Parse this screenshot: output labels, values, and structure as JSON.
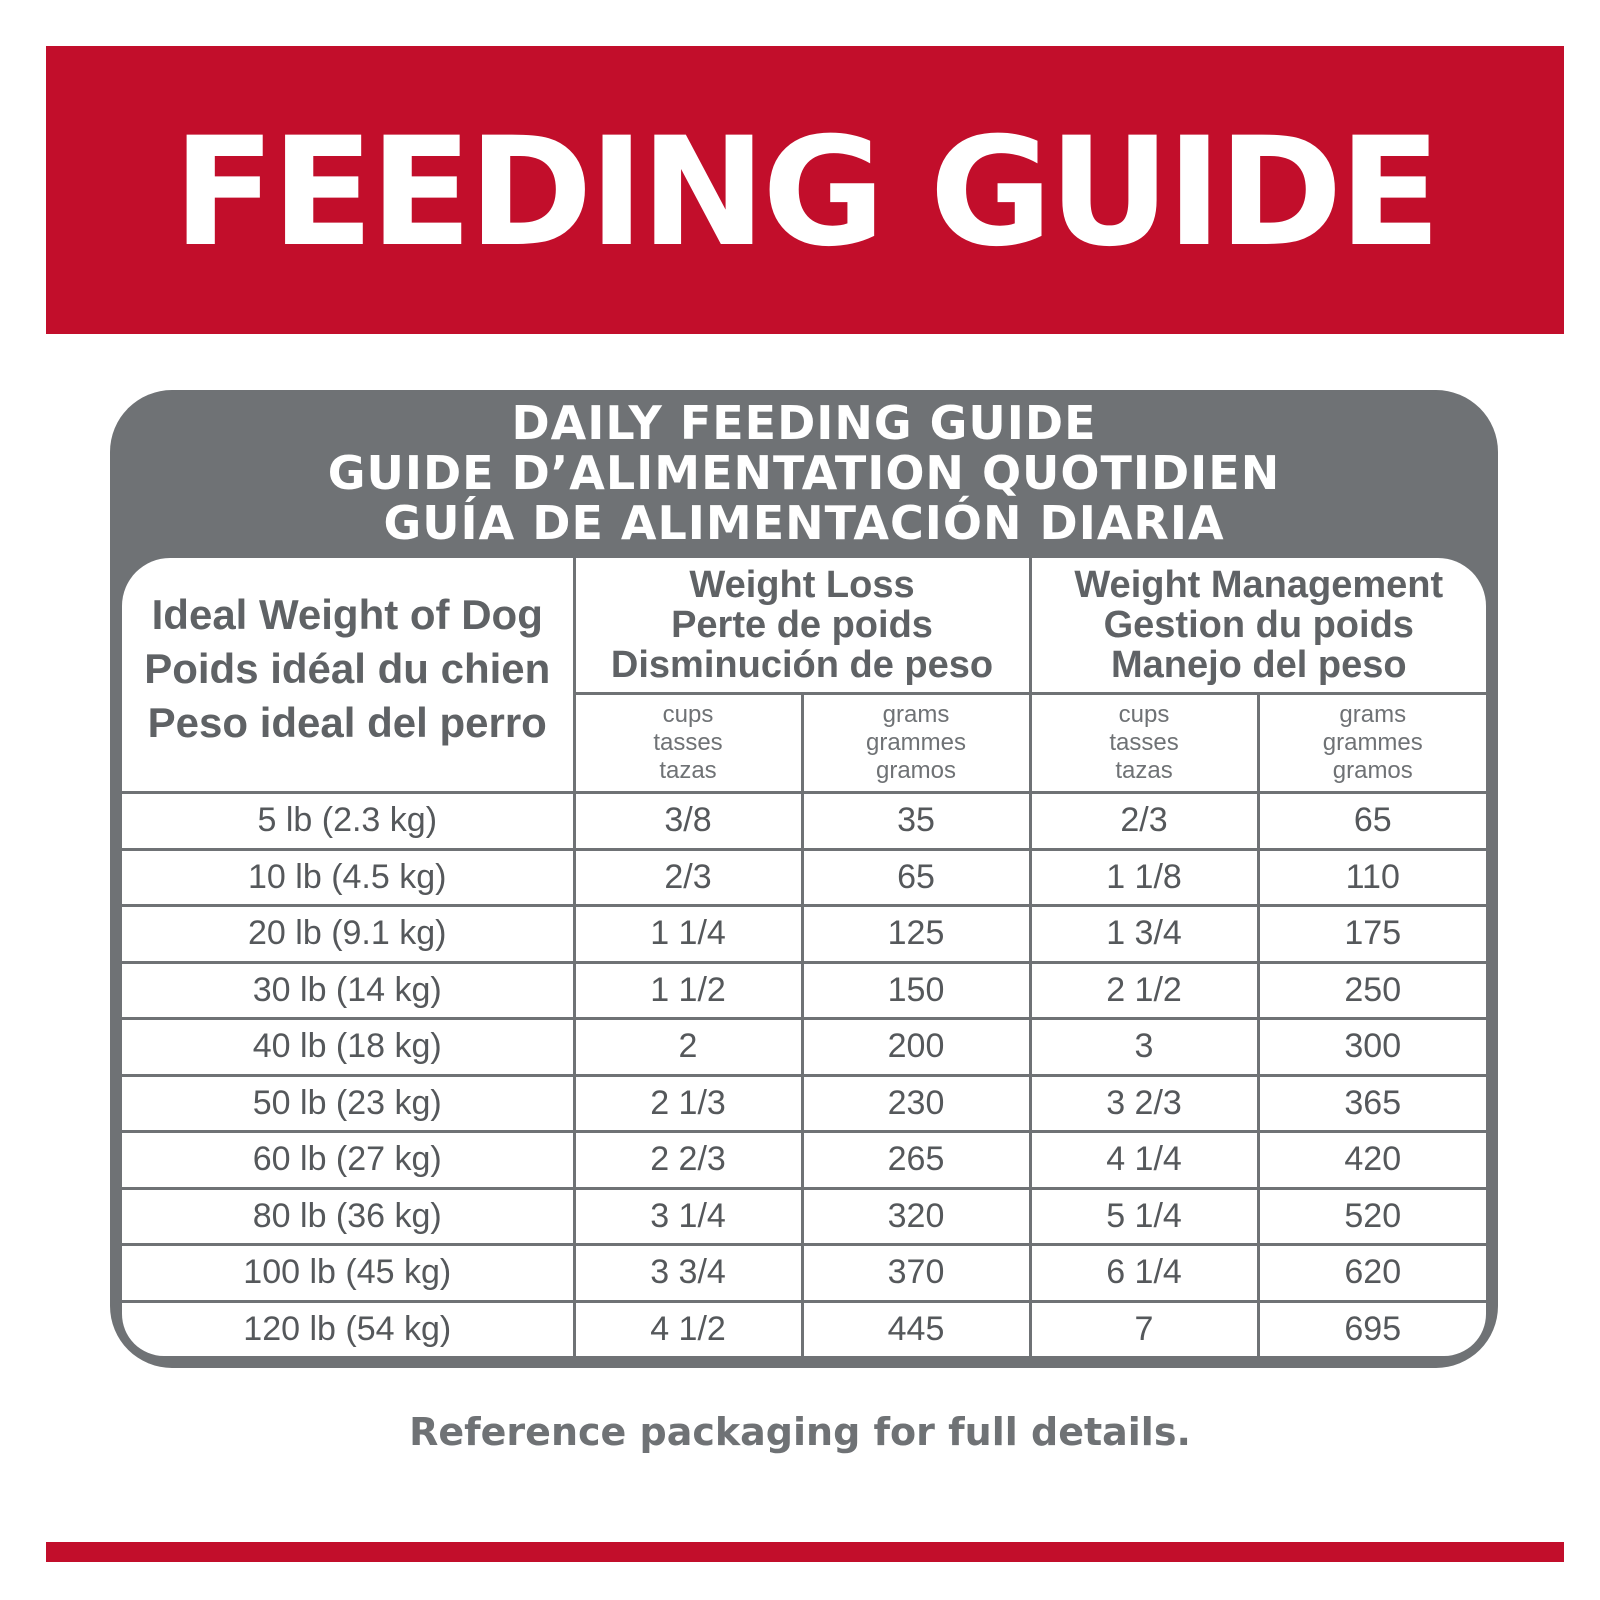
{
  "banner": {
    "title": "FEEDING GUIDE"
  },
  "card": {
    "titles": [
      "DAILY FEEDING GUIDE",
      "GUIDE D’ALIMENTATION QUOTIDIEN",
      "GUÍA DE ALIMENTACIÓN DIARIA"
    ]
  },
  "table": {
    "weight_header": [
      "Ideal Weight of Dog",
      "Poids idéal du chien",
      "Peso ideal del perro"
    ],
    "groups": [
      {
        "lines": [
          "Weight Loss",
          "Perte de poids",
          "Disminución de peso"
        ]
      },
      {
        "lines": [
          "Weight Management",
          "Gestion du poids",
          "Manejo del peso"
        ]
      }
    ],
    "units": [
      [
        "cups",
        "tasses",
        "tazas"
      ],
      [
        "grams",
        "grammes",
        "gramos"
      ],
      [
        "cups",
        "tasses",
        "tazas"
      ],
      [
        "grams",
        "grammes",
        "gramos"
      ]
    ],
    "rows": [
      [
        "5 lb (2.3 kg)",
        "3/8",
        "35",
        "2/3",
        "65"
      ],
      [
        "10 lb (4.5 kg)",
        "2/3",
        "65",
        "1 1/8",
        "110"
      ],
      [
        "20 lb (9.1 kg)",
        "1 1/4",
        "125",
        "1 3/4",
        "175"
      ],
      [
        "30 lb (14 kg)",
        "1 1/2",
        "150",
        "2 1/2",
        "250"
      ],
      [
        "40 lb (18 kg)",
        "2",
        "200",
        "3",
        "300"
      ],
      [
        "50 lb (23 kg)",
        "2 1/3",
        "230",
        "3 2/3",
        "365"
      ],
      [
        "60 lb (27 kg)",
        "2 2/3",
        "265",
        "4 1/4",
        "420"
      ],
      [
        "80 lb (36 kg)",
        "3 1/4",
        "320",
        "5 1/4",
        "520"
      ],
      [
        "100 lb (45 kg)",
        "3 3/4",
        "370",
        "6 1/4",
        "620"
      ],
      [
        "120 lb (54 kg)",
        "4 1/2",
        "445",
        "7",
        "695"
      ]
    ]
  },
  "footnote": "Reference packaging for full details.",
  "colors": {
    "brand_red": "#c20e2b",
    "gray": "#6f7275",
    "text": "#55585b"
  }
}
